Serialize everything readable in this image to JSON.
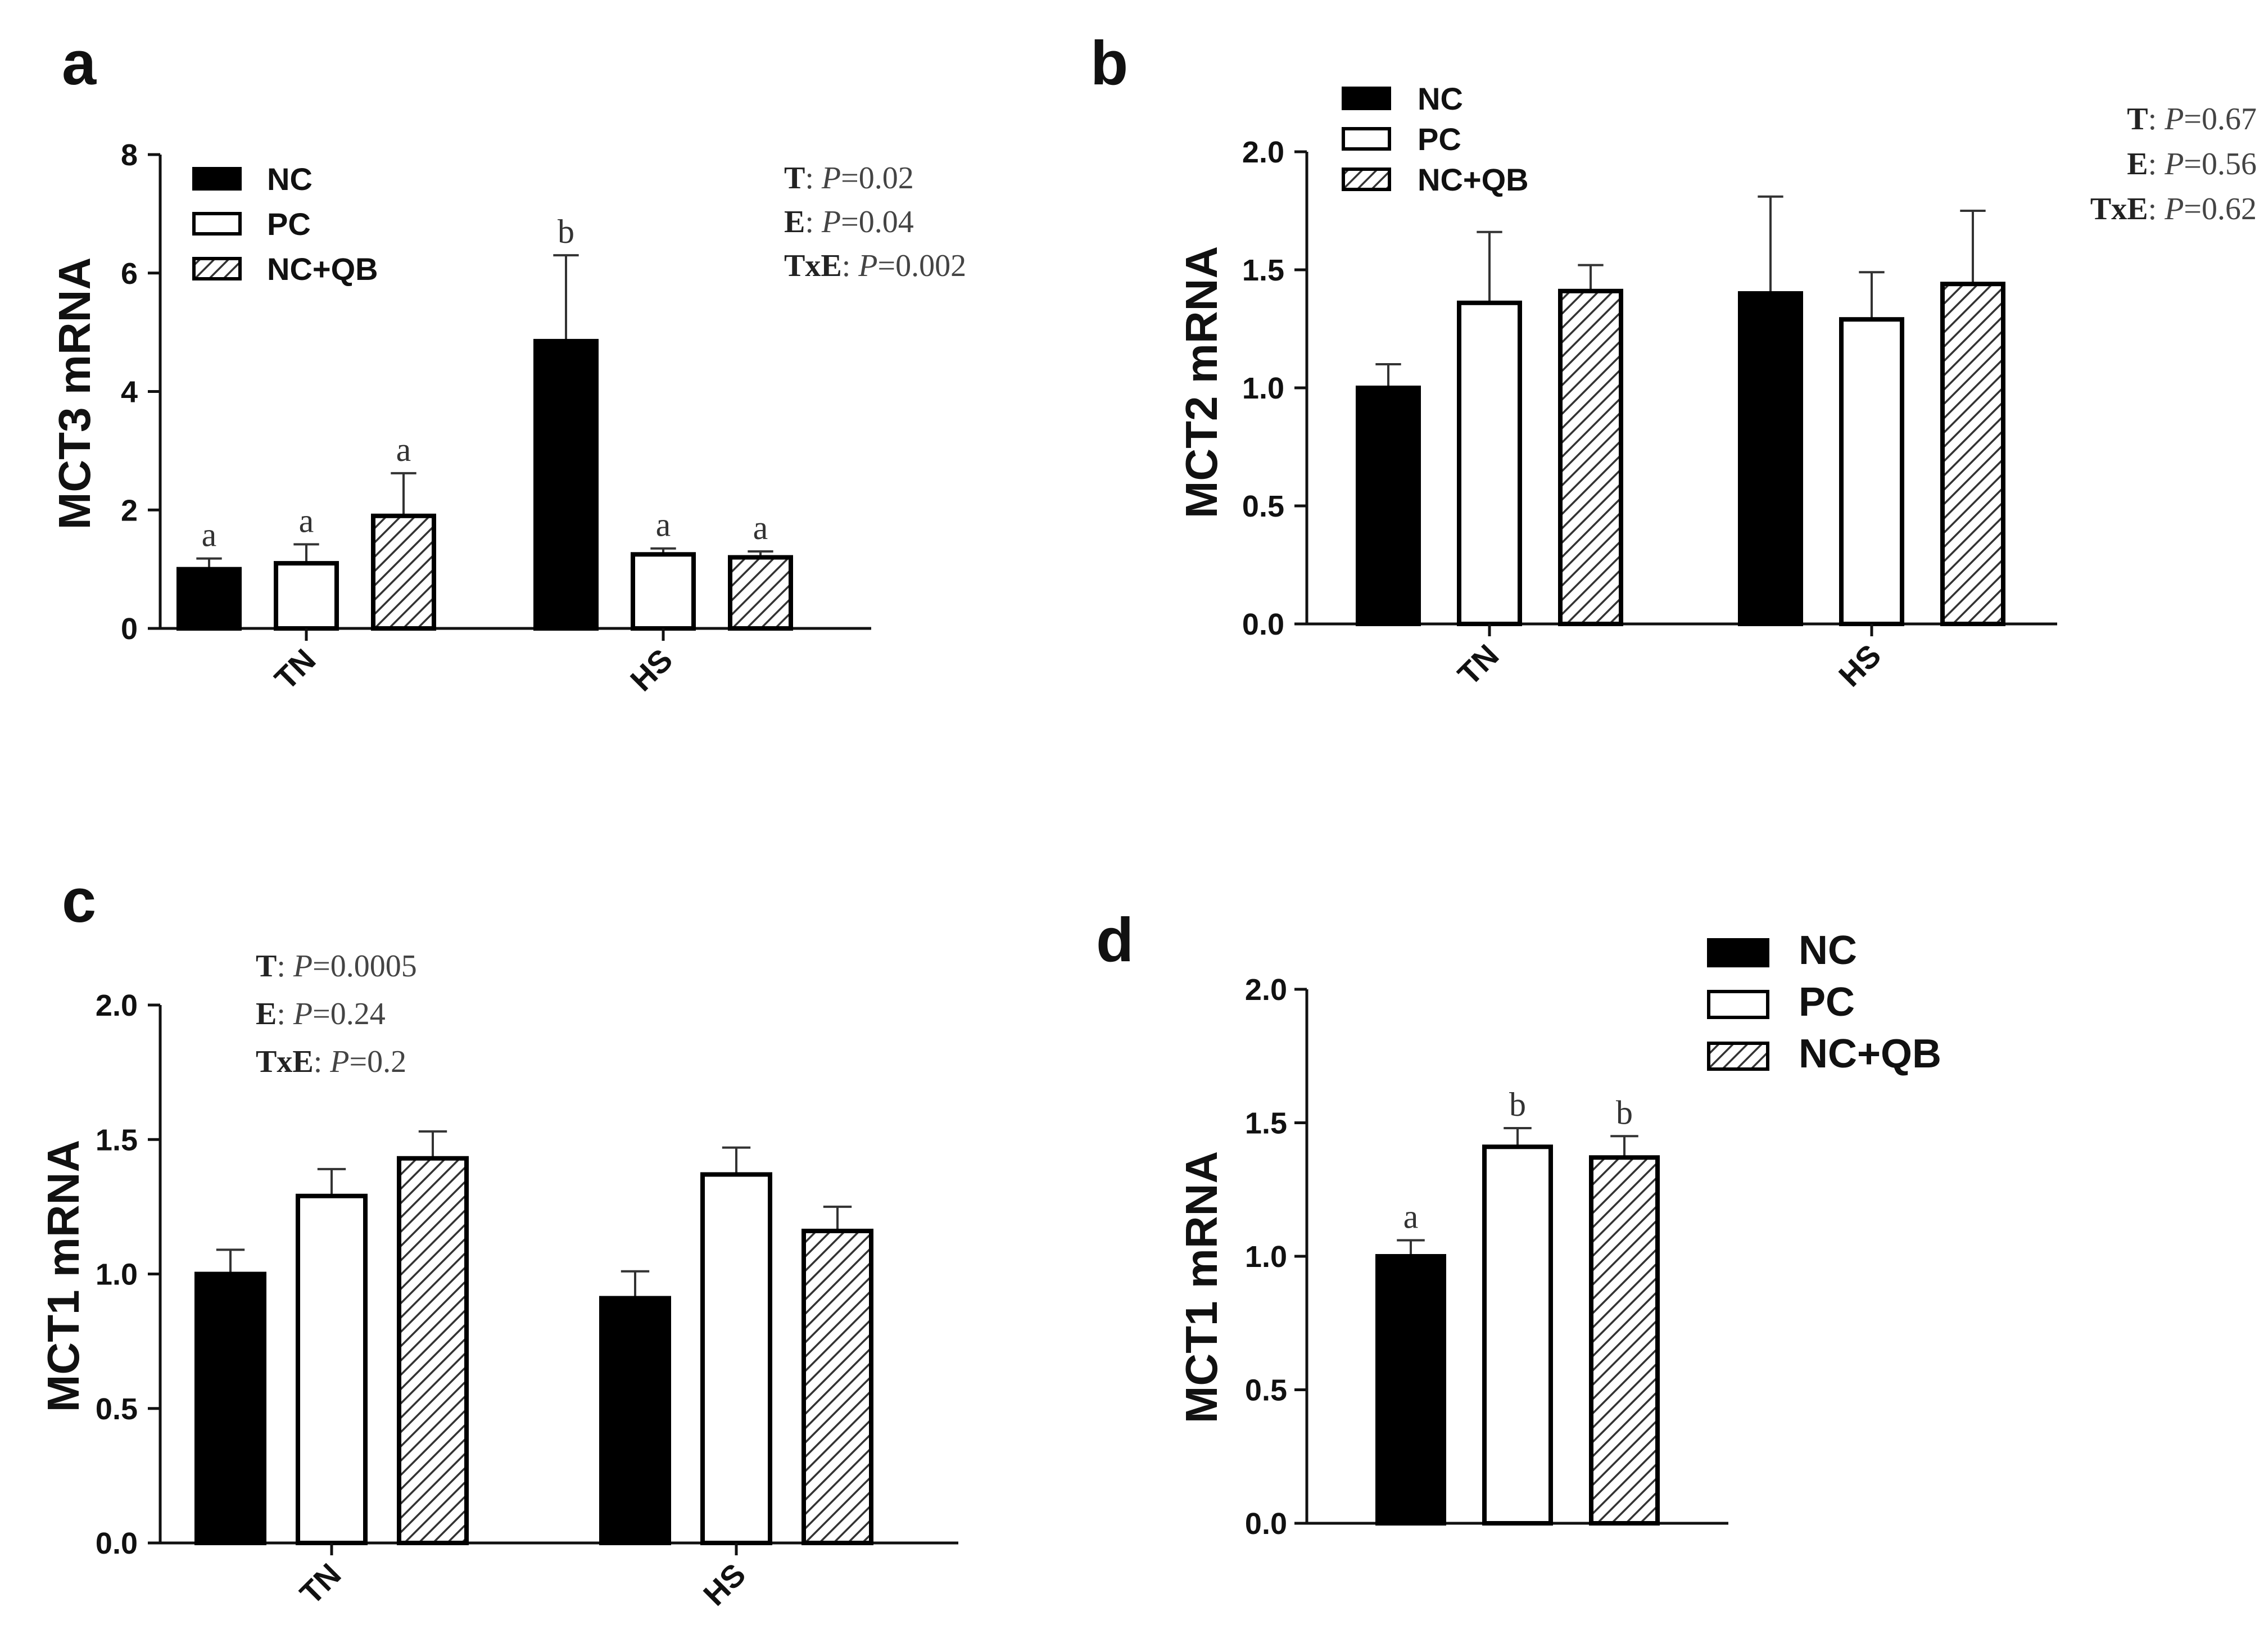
{
  "chart_data": [
    {
      "panel": "a",
      "type": "bar",
      "ylabel": "MCT3 mRNA",
      "ylim": [
        0,
        8
      ],
      "yticks": [
        "0",
        "2",
        "4",
        "6",
        "8"
      ],
      "categories": [
        "TN",
        "HS"
      ],
      "legend": [
        "NC",
        "PC",
        "NC+QB"
      ],
      "series": [
        {
          "name": "NC",
          "values": [
            1.0,
            4.85
          ],
          "errors": [
            0.18,
            1.45
          ],
          "letters": [
            "a",
            "b"
          ]
        },
        {
          "name": "PC",
          "values": [
            1.1,
            1.25
          ],
          "errors": [
            0.32,
            0.1
          ],
          "letters": [
            "a",
            "a"
          ]
        },
        {
          "name": "NC+QB",
          "values": [
            1.9,
            1.2
          ],
          "errors": [
            0.72,
            0.1
          ],
          "letters": [
            "a",
            "a"
          ]
        }
      ],
      "stats": [
        {
          "label": "T",
          "value": "0.02"
        },
        {
          "label": "E",
          "value": "0.04"
        },
        {
          "label": "TxE",
          "value": "0.002"
        }
      ]
    },
    {
      "panel": "b",
      "type": "bar",
      "ylabel": "MCT2 mRNA",
      "ylim": [
        0,
        2
      ],
      "yticks": [
        "0.0",
        "0.5",
        "1.0",
        "1.5",
        "2.0"
      ],
      "categories": [
        "TN",
        "HS"
      ],
      "legend": [
        "NC",
        "PC",
        "NC+QB"
      ],
      "series": [
        {
          "name": "NC",
          "values": [
            1.0,
            1.4
          ],
          "errors": [
            0.1,
            0.41
          ],
          "letters": [
            "",
            ""
          ]
        },
        {
          "name": "PC",
          "values": [
            1.36,
            1.29
          ],
          "errors": [
            0.3,
            0.2
          ],
          "letters": [
            "",
            ""
          ]
        },
        {
          "name": "NC+QB",
          "values": [
            1.41,
            1.44
          ],
          "errors": [
            0.11,
            0.31
          ],
          "letters": [
            "",
            ""
          ]
        }
      ],
      "stats": [
        {
          "label": "T",
          "value": "0.67"
        },
        {
          "label": "E",
          "value": "0.56"
        },
        {
          "label": "TxE",
          "value": "0.62"
        }
      ]
    },
    {
      "panel": "c",
      "type": "bar",
      "ylabel": "MCT1 mRNA",
      "ylim": [
        0,
        2
      ],
      "yticks": [
        "0.0",
        "0.5",
        "1.0",
        "1.5",
        "2.0"
      ],
      "categories": [
        "TN",
        "HS"
      ],
      "legend": [],
      "series": [
        {
          "name": "NC",
          "values": [
            1.0,
            0.91
          ],
          "errors": [
            0.09,
            0.1
          ],
          "letters": [
            "",
            ""
          ]
        },
        {
          "name": "PC",
          "values": [
            1.29,
            1.37
          ],
          "errors": [
            0.1,
            0.1
          ],
          "letters": [
            "",
            ""
          ]
        },
        {
          "name": "NC+QB",
          "values": [
            1.43,
            1.16
          ],
          "errors": [
            0.1,
            0.09
          ],
          "letters": [
            "",
            ""
          ]
        }
      ],
      "stats": [
        {
          "label": "T",
          "value": "0.0005"
        },
        {
          "label": "E",
          "value": "0.24"
        },
        {
          "label": "TxE",
          "value": "0.2"
        }
      ]
    },
    {
      "panel": "d",
      "type": "bar",
      "ylabel": "MCT1 mRNA",
      "ylim": [
        0,
        2
      ],
      "yticks": [
        "0.0",
        "0.5",
        "1.0",
        "1.5",
        "2.0"
      ],
      "categories": [
        "NC",
        "PC",
        "NC+QB"
      ],
      "legend": [
        "NC",
        "PC",
        "NC+QB"
      ],
      "values": [
        1.0,
        1.41,
        1.37
      ],
      "errors": [
        0.06,
        0.07,
        0.08
      ],
      "letters": [
        "a",
        "b",
        "b"
      ],
      "stats": []
    }
  ]
}
